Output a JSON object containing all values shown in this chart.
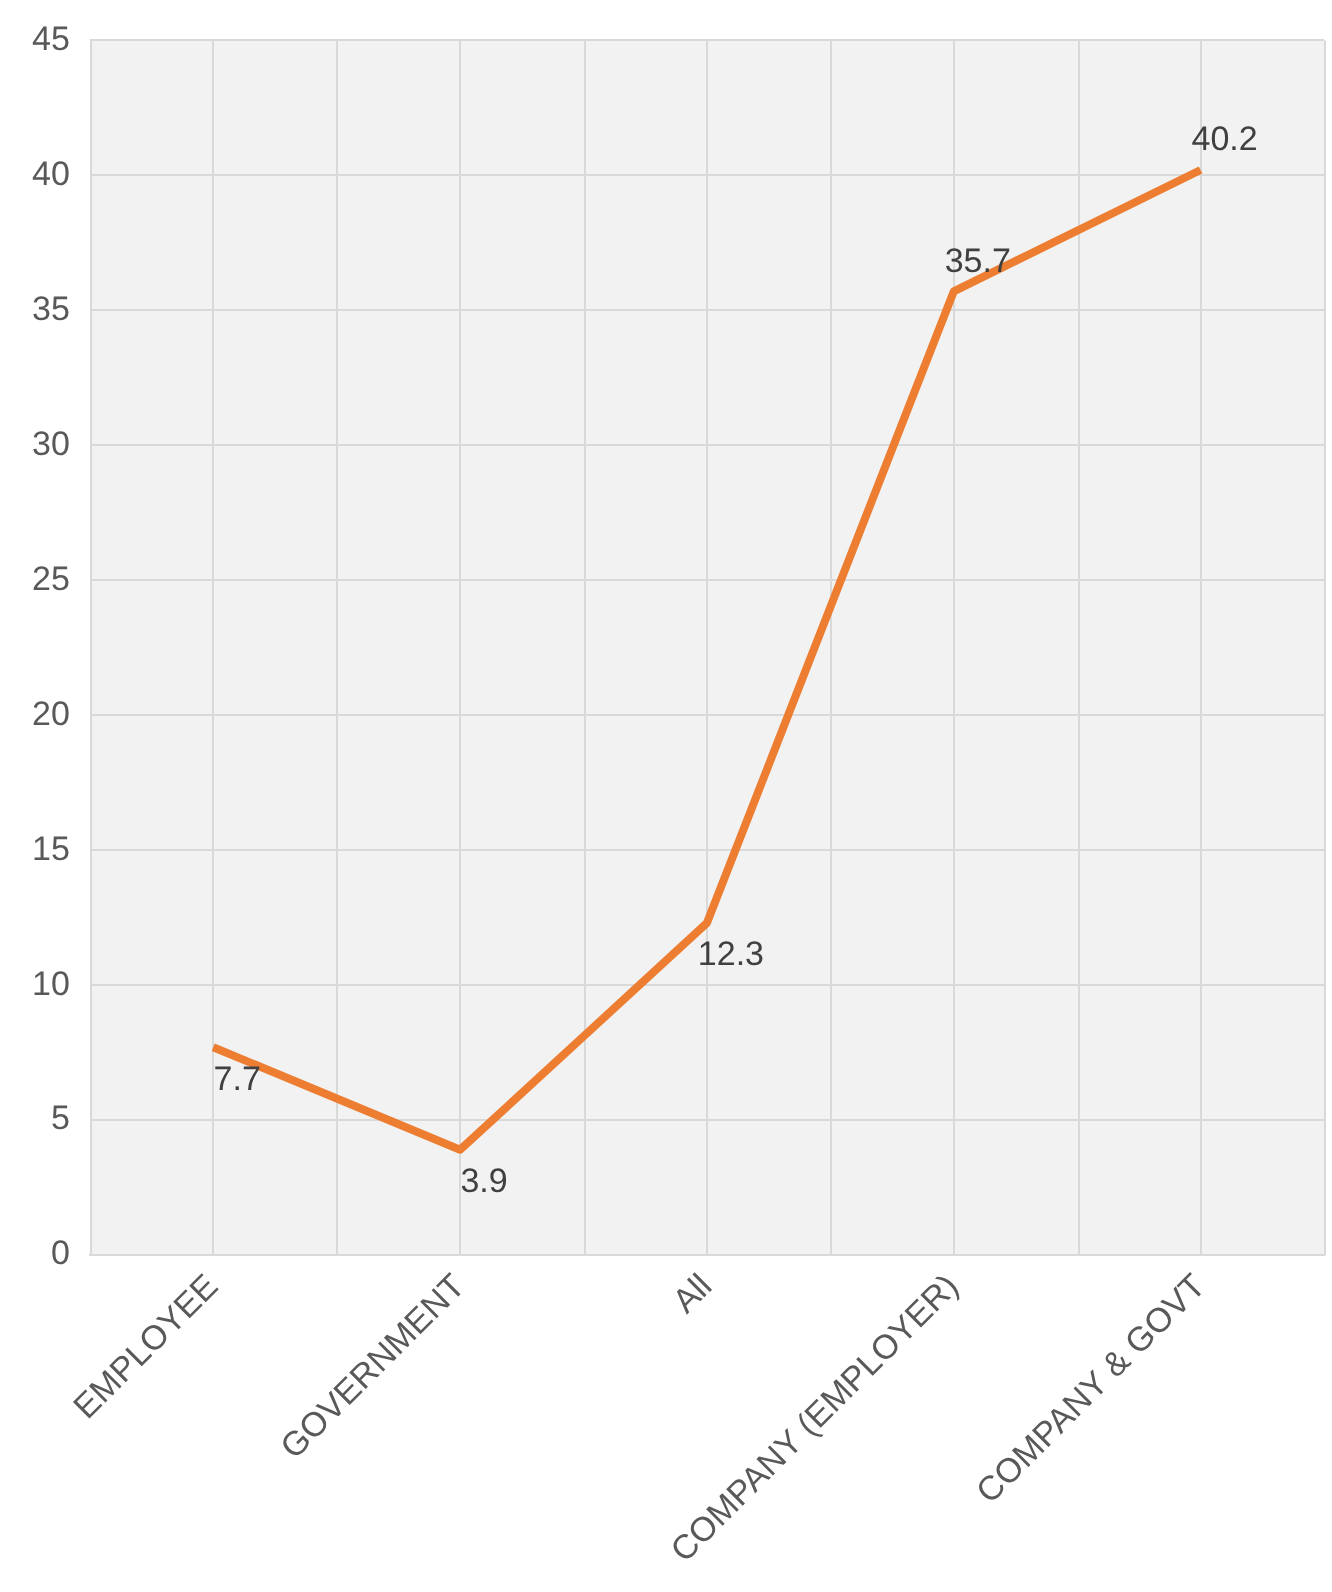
{
  "chart_data": {
    "type": "line",
    "categories": [
      "EMPLOYEE",
      "GOVERNMENT",
      "All",
      "COMPANY (EMPLOYER)",
      "COMPANY & GOVT"
    ],
    "series": [
      {
        "color": "#ed7d31",
        "values": [
          7.7,
          3.9,
          12.3,
          35.7,
          40.2
        ]
      }
    ],
    "ylim": [
      0,
      45
    ],
    "yticks": [
      0,
      5,
      10,
      15,
      20,
      25,
      30,
      35,
      40,
      45
    ],
    "grid": true,
    "legend": false,
    "marker": "none",
    "line_style": "solid",
    "data_labels": true
  }
}
